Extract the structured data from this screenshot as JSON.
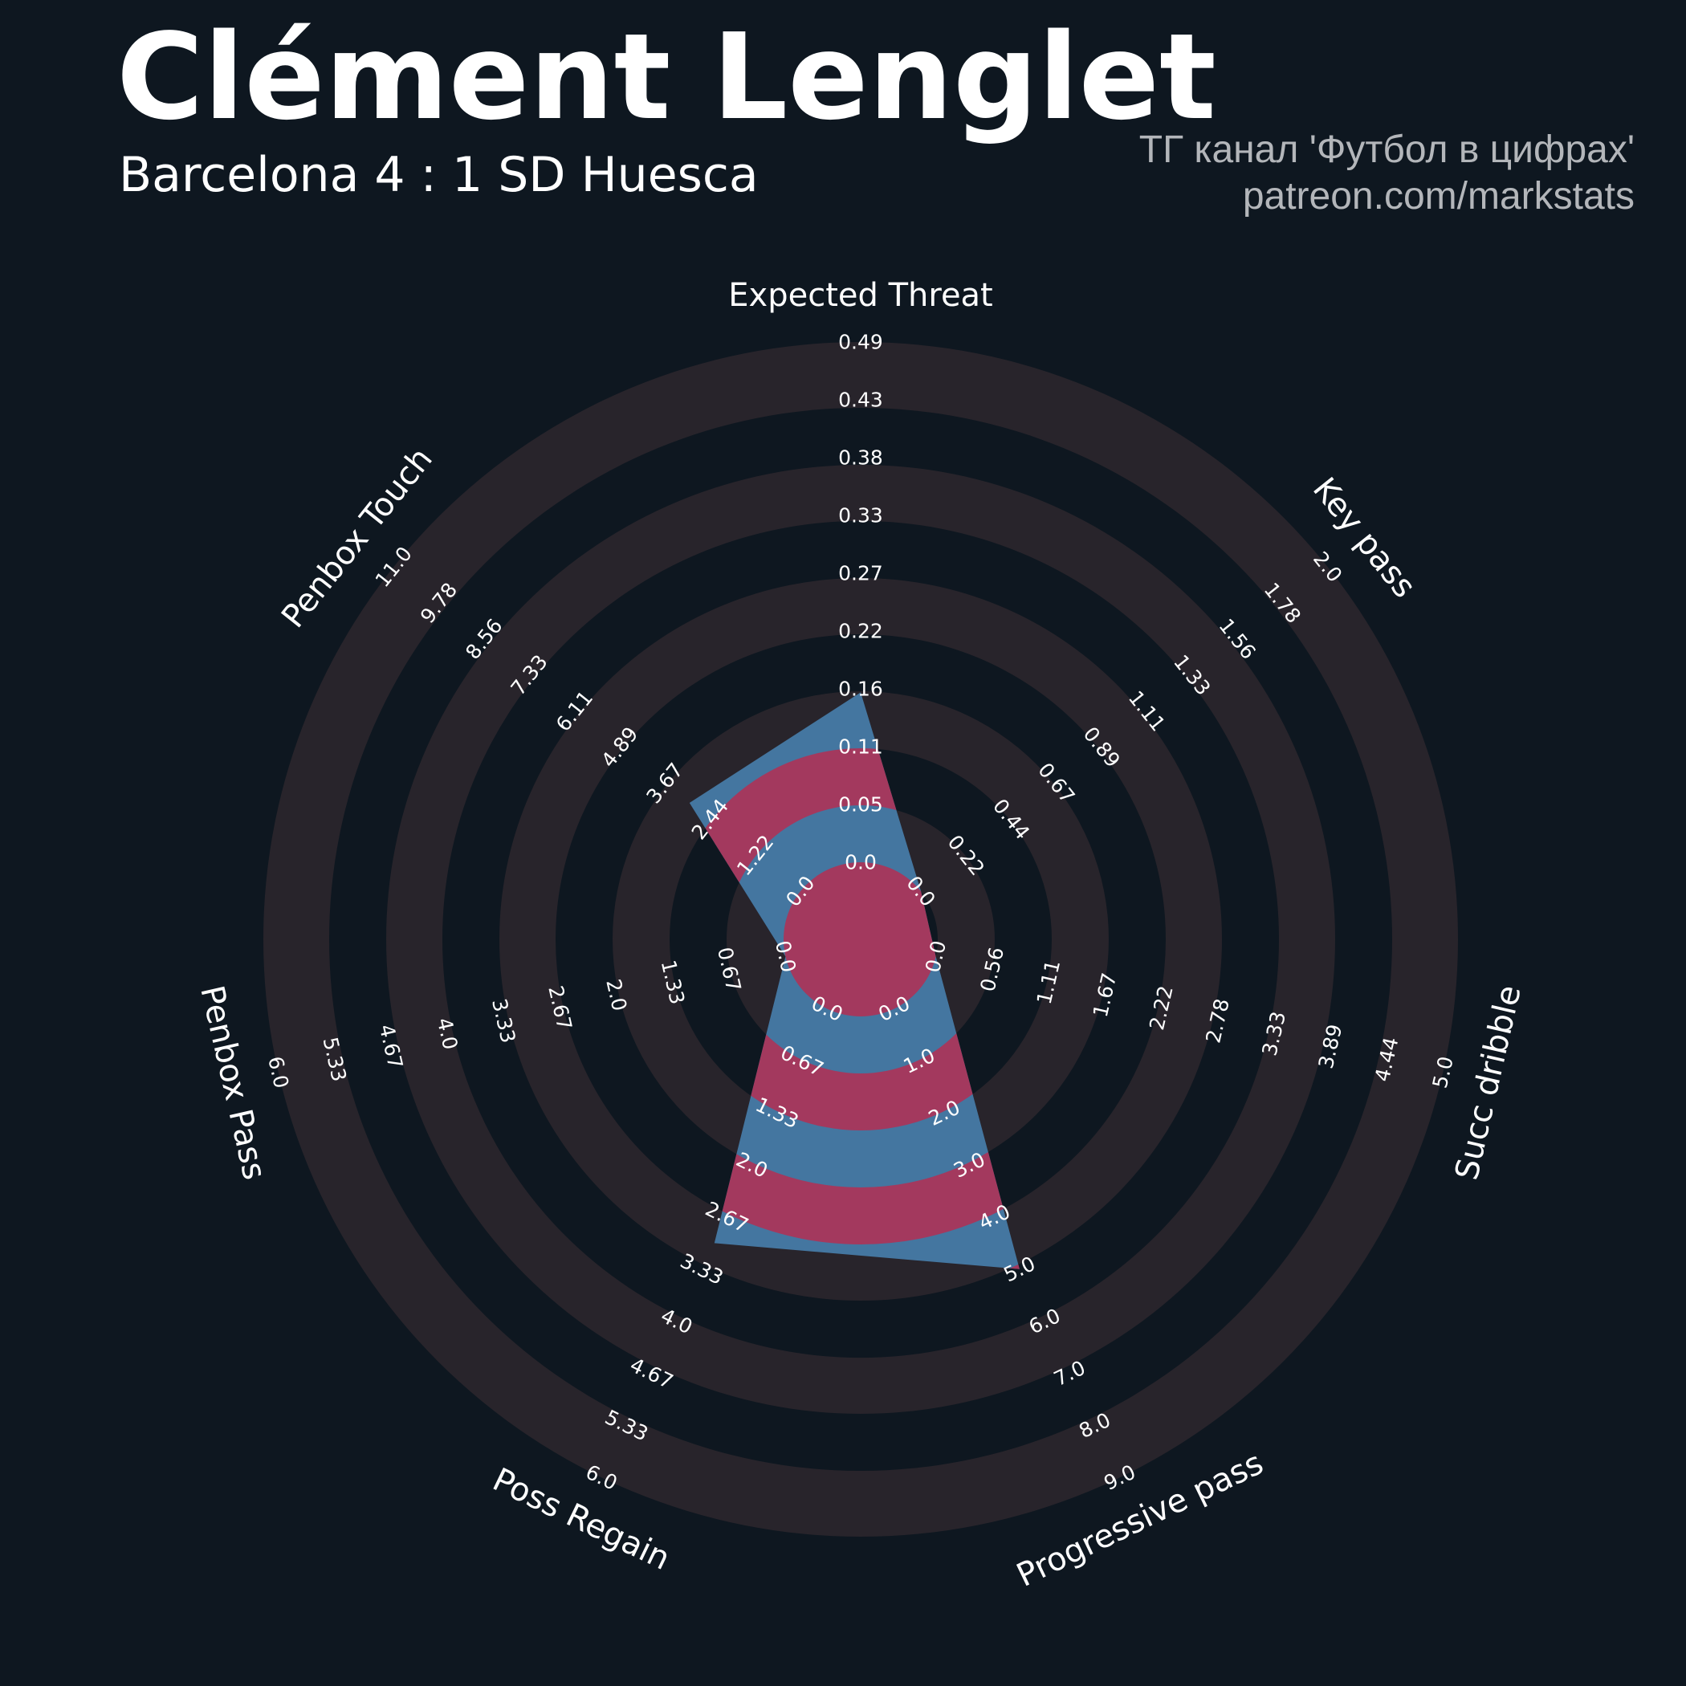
{
  "header": {
    "title": "Clément Lenglet",
    "subtitle": "Barcelona 4 : 1 SD Huesca",
    "credit_line_1": "ТГ канал 'Футбол в цифрах'",
    "credit_line_2": "patreon.com/markstats"
  },
  "colors": {
    "background": "#0e1720",
    "ring": "#28242b",
    "fill_blue": "#4476a0",
    "fill_red": "#a3395e",
    "title_text": "#ffffff",
    "credit_text": "#b3b6ba"
  },
  "chart_data": {
    "type": "radar",
    "title": "Clément Lenglet",
    "subtitle": "Barcelona 4 : 1 SD Huesca",
    "axes": [
      {
        "name": "Expected Threat",
        "min": 0.0,
        "max": 0.49,
        "value": 0.16,
        "ticks": [
          "0.0",
          "0.05",
          "0.11",
          "0.16",
          "0.22",
          "0.27",
          "0.33",
          "0.38",
          "0.43",
          "0.49"
        ]
      },
      {
        "name": "Key pass",
        "min": 0.0,
        "max": 2.0,
        "value": 0.0,
        "ticks": [
          "0.0",
          "0.22",
          "0.44",
          "0.67",
          "0.89",
          "1.11",
          "1.33",
          "1.56",
          "1.78",
          "2.0"
        ]
      },
      {
        "name": "Succ dribble",
        "min": 0.0,
        "max": 5.0,
        "value": 0.0,
        "ticks": [
          "0.0",
          "0.56",
          "1.11",
          "1.67",
          "2.22",
          "2.78",
          "3.33",
          "3.89",
          "4.44",
          "5.0"
        ]
      },
      {
        "name": "Progressive pass",
        "min": 0.0,
        "max": 9.0,
        "value": 5.0,
        "ticks": [
          "0.0",
          "1.0",
          "2.0",
          "3.0",
          "4.0",
          "5.0",
          "6.0",
          "7.0",
          "8.0",
          "9.0"
        ]
      },
      {
        "name": "Poss Regain",
        "min": 0.0,
        "max": 6.0,
        "value": 3.0,
        "ticks": [
          "0.0",
          "0.67",
          "1.33",
          "2.0",
          "2.67",
          "3.33",
          "4.0",
          "4.67",
          "5.33",
          "6.0"
        ]
      },
      {
        "name": "Penbox Pass",
        "min": 0.0,
        "max": 6.0,
        "value": 0.0,
        "ticks": [
          "0.0",
          "0.67",
          "1.33",
          "2.0",
          "2.67",
          "3.33",
          "4.0",
          "4.67",
          "5.33",
          "6.0"
        ]
      },
      {
        "name": "Penbox Touch",
        "min": 0.0,
        "max": 11.0,
        "value": 3.0,
        "ticks": [
          "0.0",
          "1.22",
          "2.44",
          "3.67",
          "4.89",
          "6.11",
          "7.33",
          "8.56",
          "9.78",
          "11.0"
        ]
      }
    ],
    "grid": "alternating concentric bands"
  }
}
